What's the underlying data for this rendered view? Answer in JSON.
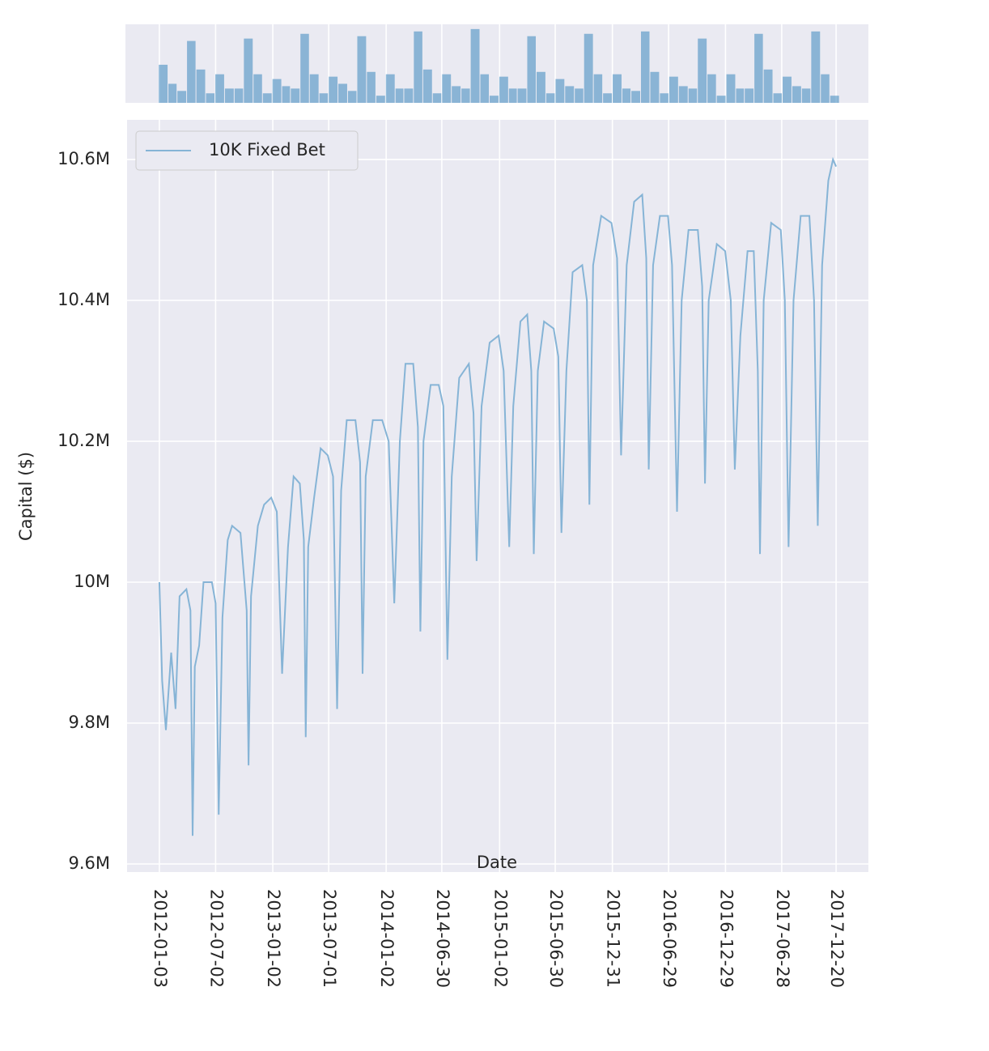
{
  "chart_data": [
    {
      "type": "histogram",
      "color": "#3a86bd",
      "xlim": [
        "2011-09-21",
        "2018-04-03"
      ],
      "ylim": [
        0,
        33
      ],
      "bins": [
        "2012-01-01",
        "2012-02-01",
        "2012-03-01",
        "2012-04-01",
        "2012-05-01",
        "2012-06-01",
        "2012-07-01",
        "2012-08-01",
        "2012-09-01",
        "2012-10-01",
        "2012-11-01",
        "2012-12-01",
        "2013-01-01",
        "2013-02-01",
        "2013-03-01",
        "2013-04-01",
        "2013-05-01",
        "2013-06-01",
        "2013-07-01",
        "2013-08-01",
        "2013-09-01",
        "2013-10-01",
        "2013-11-01",
        "2013-12-01",
        "2014-01-01",
        "2014-02-01",
        "2014-03-01",
        "2014-04-01",
        "2014-05-01",
        "2014-06-01",
        "2014-07-01",
        "2014-08-01",
        "2014-09-01",
        "2014-10-01",
        "2014-11-01",
        "2014-12-01",
        "2015-01-01",
        "2015-02-01",
        "2015-03-01",
        "2015-04-01",
        "2015-05-01",
        "2015-06-01",
        "2015-07-01",
        "2015-08-01",
        "2015-09-01",
        "2015-10-01",
        "2015-11-01",
        "2015-12-01",
        "2016-01-01",
        "2016-02-01",
        "2016-03-01",
        "2016-04-01",
        "2016-05-01",
        "2016-06-01",
        "2016-07-01",
        "2016-08-01",
        "2016-09-01",
        "2016-10-01",
        "2016-11-01",
        "2016-12-01",
        "2017-01-01",
        "2017-02-01",
        "2017-03-01",
        "2017-04-01",
        "2017-05-01",
        "2017-06-01",
        "2017-07-01",
        "2017-08-01",
        "2017-09-01",
        "2017-10-01",
        "2017-11-01",
        "2017-12-01",
        "2018-01-01"
      ],
      "counts": [
        16,
        8,
        5,
        26,
        14,
        4,
        12,
        6,
        6,
        27,
        12,
        4,
        10,
        7,
        6,
        29,
        12,
        4,
        11,
        8,
        5,
        28,
        13,
        3,
        12,
        6,
        6,
        30,
        14,
        4,
        12,
        7,
        6,
        31,
        12,
        3,
        11,
        6,
        6,
        28,
        13,
        4,
        10,
        7,
        6,
        29,
        12,
        4,
        12,
        6,
        5,
        30,
        13,
        4,
        11,
        7,
        6,
        27,
        12,
        3,
        12,
        6,
        6,
        29,
        14,
        4,
        11,
        7,
        6,
        30,
        12,
        3
      ]
    },
    {
      "type": "line",
      "xlabel": "Date",
      "ylabel": "Capital ($)",
      "grid": true,
      "legend": "upper left",
      "xlim": [
        "2011-09-21",
        "2018-04-03"
      ],
      "xticks": [
        "2012-01-03",
        "2012-07-02",
        "2013-01-02",
        "2013-07-01",
        "2014-01-02",
        "2014-06-30",
        "2015-01-02",
        "2015-06-30",
        "2015-12-31",
        "2016-06-29",
        "2016-12-29",
        "2017-06-28",
        "2017-12-20"
      ],
      "ylim": [
        9588500,
        10656300
      ],
      "yticks": [
        {
          "value": 9600000,
          "label": "9.6M"
        },
        {
          "value": 9800000,
          "label": "9.8M"
        },
        {
          "value": 10000000,
          "label": "10M"
        },
        {
          "value": 10200000,
          "label": "10.2M"
        },
        {
          "value": 10400000,
          "label": "10.4M"
        },
        {
          "value": 10600000,
          "label": "10.6M"
        }
      ],
      "x": [
        "2012-01-03",
        "2012-01-12",
        "2012-01-24",
        "2012-02-10",
        "2012-02-24",
        "2012-03-08",
        "2012-03-30",
        "2012-04-12",
        "2012-04-19",
        "2012-04-26",
        "2012-05-10",
        "2012-05-24",
        "2012-06-20",
        "2012-07-02",
        "2012-07-12",
        "2012-07-24",
        "2012-08-10",
        "2012-08-24",
        "2012-09-20",
        "2012-10-10",
        "2012-10-16",
        "2012-10-24",
        "2012-11-15",
        "2012-12-05",
        "2012-12-28",
        "2013-01-15",
        "2013-02-01",
        "2013-02-20",
        "2013-03-10",
        "2013-03-30",
        "2013-04-12",
        "2013-04-18",
        "2013-04-26",
        "2013-05-15",
        "2013-06-05",
        "2013-06-28",
        "2013-07-15",
        "2013-07-28",
        "2013-08-10",
        "2013-08-28",
        "2013-09-25",
        "2013-10-10",
        "2013-10-18",
        "2013-10-28",
        "2013-11-20",
        "2013-12-20",
        "2014-01-10",
        "2014-01-28",
        "2014-02-15",
        "2014-03-05",
        "2014-03-30",
        "2014-04-14",
        "2014-04-22",
        "2014-05-02",
        "2014-05-25",
        "2014-06-20",
        "2014-07-05",
        "2014-07-18",
        "2014-08-01",
        "2014-08-25",
        "2014-09-25",
        "2014-10-10",
        "2014-10-20",
        "2014-11-05",
        "2014-12-01",
        "2014-12-30",
        "2015-01-15",
        "2015-02-02",
        "2015-02-15",
        "2015-03-10",
        "2015-04-01",
        "2015-04-14",
        "2015-04-22",
        "2015-05-05",
        "2015-05-25",
        "2015-06-25",
        "2015-07-10",
        "2015-07-20",
        "2015-08-05",
        "2015-08-25",
        "2015-09-25",
        "2015-10-10",
        "2015-10-18",
        "2015-10-30",
        "2015-11-25",
        "2015-12-28",
        "2016-01-15",
        "2016-01-28",
        "2016-02-15",
        "2016-03-10",
        "2016-04-05",
        "2016-04-18",
        "2016-04-26",
        "2016-05-10",
        "2016-06-01",
        "2016-06-27",
        "2016-07-10",
        "2016-07-26",
        "2016-08-10",
        "2016-09-01",
        "2016-10-01",
        "2016-10-15",
        "2016-10-24",
        "2016-11-05",
        "2016-12-01",
        "2016-12-28",
        "2017-01-15",
        "2017-01-28",
        "2017-02-15",
        "2017-03-10",
        "2017-03-30",
        "2017-04-12",
        "2017-04-19",
        "2017-05-01",
        "2017-05-25",
        "2017-06-25",
        "2017-07-08",
        "2017-07-20",
        "2017-08-05",
        "2017-08-28",
        "2017-09-25",
        "2017-10-10",
        "2017-10-22",
        "2017-11-05",
        "2017-11-25",
        "2017-12-10",
        "2017-12-20"
      ],
      "series": [
        {
          "name": "10K Fixed Bet",
          "color": "#86b4d6",
          "values": [
            10000000,
            9860000,
            9790000,
            9900000,
            9820000,
            9980000,
            9990000,
            9960000,
            9640000,
            9880000,
            9910000,
            10000000,
            10000000,
            9970000,
            9670000,
            9950000,
            10060000,
            10080000,
            10070000,
            9960000,
            9740000,
            9980000,
            10080000,
            10110000,
            10120000,
            10100000,
            9870000,
            10050000,
            10150000,
            10140000,
            10060000,
            9780000,
            10050000,
            10120000,
            10190000,
            10180000,
            10150000,
            9820000,
            10130000,
            10230000,
            10230000,
            10170000,
            9870000,
            10150000,
            10230000,
            10230000,
            10200000,
            9970000,
            10200000,
            10310000,
            10310000,
            10220000,
            9930000,
            10200000,
            10280000,
            10280000,
            10250000,
            9890000,
            10150000,
            10290000,
            10310000,
            10240000,
            10030000,
            10250000,
            10340000,
            10350000,
            10300000,
            10050000,
            10250000,
            10370000,
            10380000,
            10300000,
            10040000,
            10300000,
            10370000,
            10360000,
            10320000,
            10070000,
            10300000,
            10440000,
            10450000,
            10400000,
            10110000,
            10450000,
            10520000,
            10510000,
            10460000,
            10180000,
            10450000,
            10540000,
            10550000,
            10460000,
            10160000,
            10450000,
            10520000,
            10520000,
            10450000,
            10100000,
            10400000,
            10500000,
            10500000,
            10420000,
            10140000,
            10400000,
            10480000,
            10470000,
            10400000,
            10160000,
            10350000,
            10470000,
            10470000,
            10300000,
            10040000,
            10400000,
            10510000,
            10500000,
            10400000,
            10050000,
            10400000,
            10520000,
            10520000,
            10400000,
            10080000,
            10450000,
            10570000,
            10600000,
            10590000
          ]
        }
      ]
    }
  ]
}
